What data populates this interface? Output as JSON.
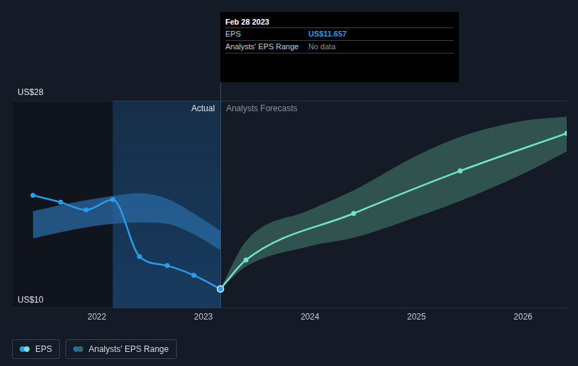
{
  "chart_data": {
    "type": "line",
    "xlim": [
      2021.21,
      2026.41
    ],
    "xticks": [
      2022,
      2023,
      2024,
      2025,
      2026
    ],
    "ylim": [
      10,
      28
    ],
    "yticks": [
      {
        "value": 10,
        "label": "US$10"
      },
      {
        "value": 28,
        "label": "US$28"
      }
    ],
    "grid": true,
    "legend": "bottom-left",
    "regions": [
      {
        "label": "Actual",
        "from": 2022.15,
        "to": 2023.16
      },
      {
        "label": "Analysts Forecasts",
        "from": 2023.16,
        "to": 2026.41
      }
    ],
    "tooltip": {
      "title": "Feb 28 2023",
      "x": 2023.16,
      "rows": [
        {
          "label": "EPS",
          "value": 11.657,
          "value_label": "US$11.657"
        },
        {
          "label": "Analysts' EPS Range",
          "value_label": "No data"
        }
      ]
    },
    "series": [
      {
        "name": "EPS",
        "type": "line",
        "color": "#2f9be8",
        "marker": "circle",
        "x": [
          2021.4,
          2021.66,
          2021.9,
          2022.15,
          2022.4,
          2022.66,
          2022.91,
          2023.16
        ],
        "values": [
          19.78,
          19.18,
          18.51,
          19.42,
          14.47,
          13.68,
          12.84,
          11.657
        ]
      },
      {
        "name": "EPS",
        "type": "line",
        "color": "#74e2cf",
        "marker": "circle",
        "x": [
          2023.16,
          2023.4,
          2024.41,
          2025.41,
          2026.41
        ],
        "values": [
          11.657,
          14.17,
          18.21,
          21.9,
          25.16
        ]
      },
      {
        "name": "Analysts' EPS Range",
        "type": "range",
        "color": "#2a6aa3",
        "x": [
          2021.4,
          2021.66,
          2021.9,
          2022.15,
          2022.4,
          2022.66,
          2022.91,
          2023.16
        ],
        "low": [
          16.04,
          16.58,
          17.0,
          17.31,
          17.43,
          17.31,
          16.4,
          15.01
        ],
        "high": [
          18.39,
          18.94,
          19.36,
          19.72,
          19.96,
          19.48,
          18.21,
          16.7
        ]
      },
      {
        "name": "Analysts' EPS Range",
        "type": "range",
        "color": "#3a675f",
        "x": [
          2023.16,
          2023.4,
          2024.0,
          2024.41,
          2025.0,
          2025.41,
          2026.0,
          2026.41
        ],
        "low": [
          11.657,
          13.6,
          15.37,
          16.1,
          17.91,
          19.3,
          21.65,
          23.59
        ],
        "high": [
          11.657,
          15.8,
          18.51,
          20.21,
          23.22,
          24.86,
          26.24,
          26.61
        ]
      }
    ]
  }
}
